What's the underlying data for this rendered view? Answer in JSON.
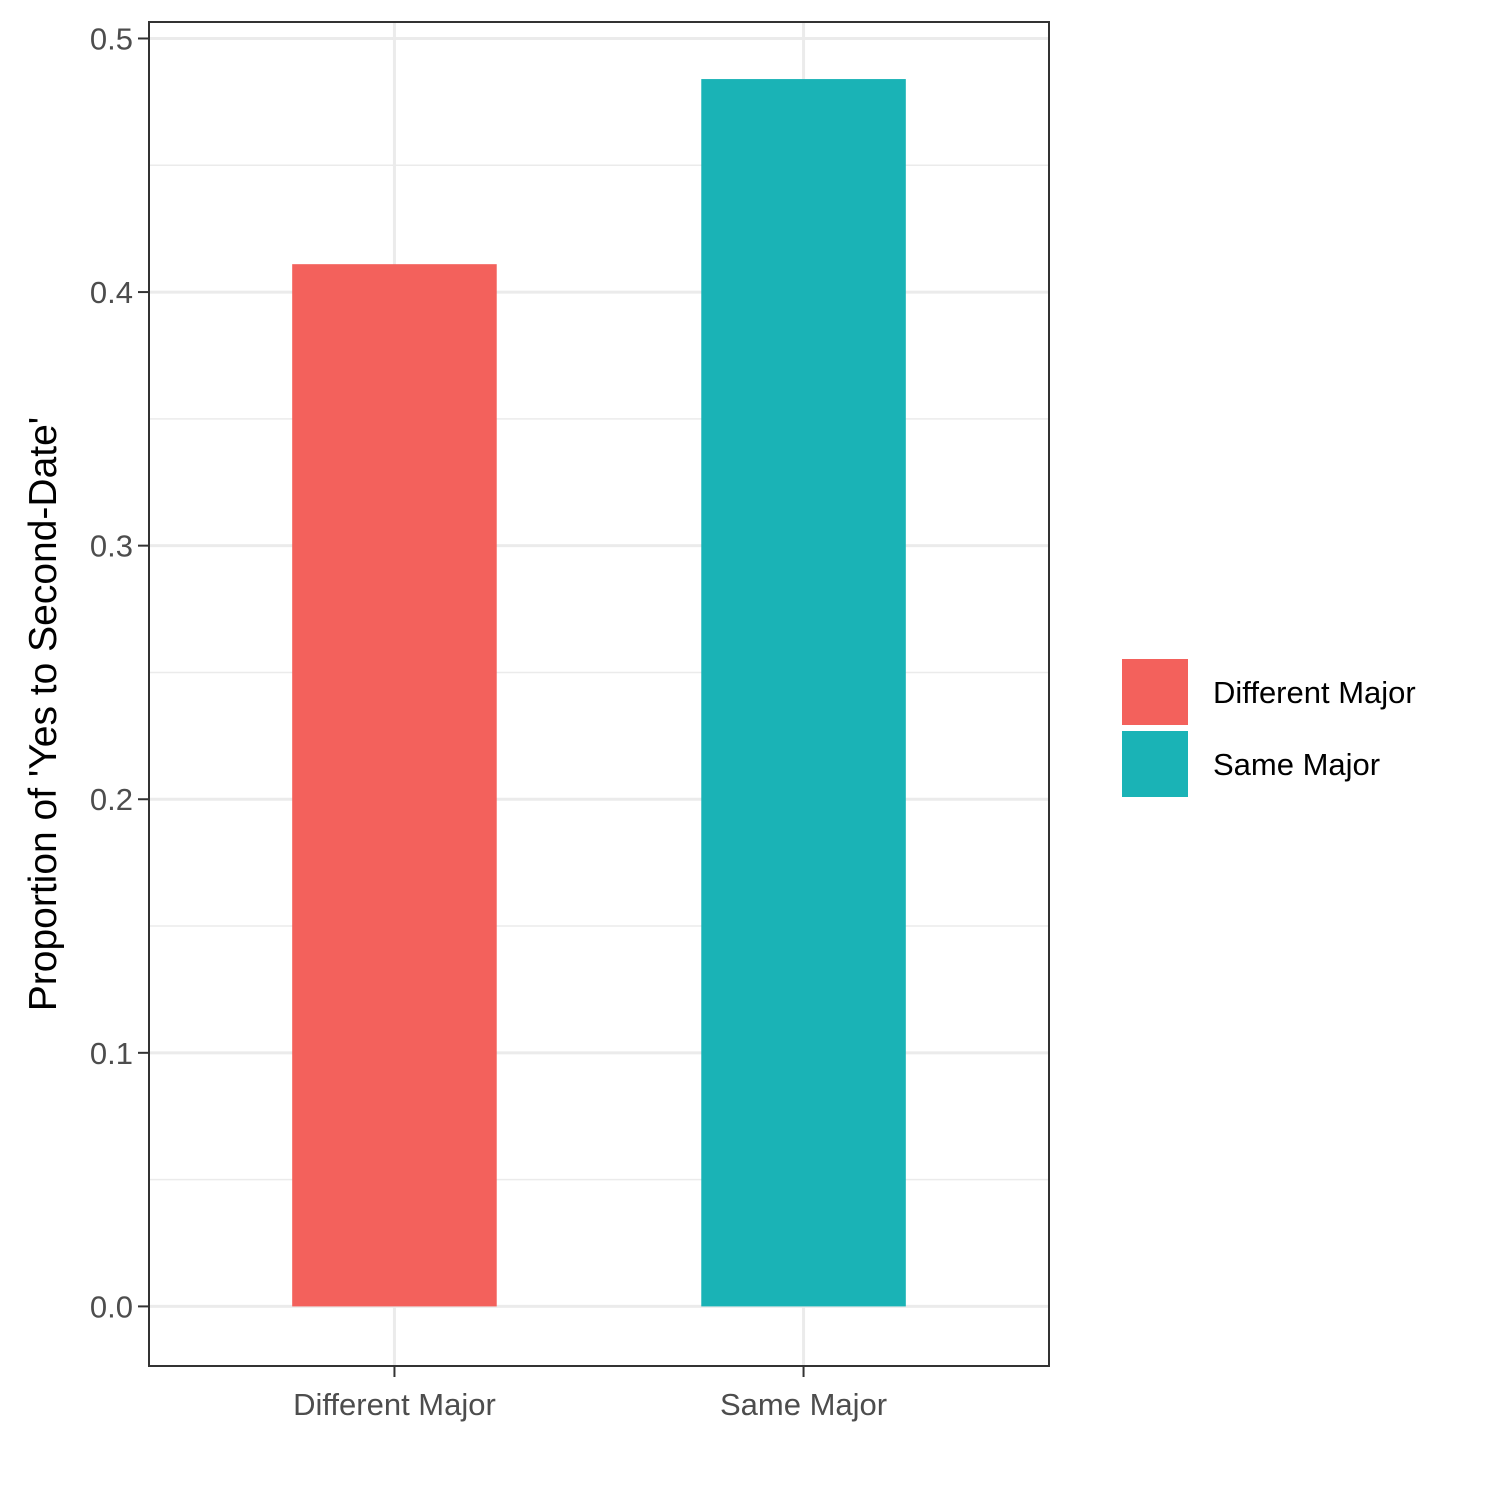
{
  "chart_data": {
    "type": "bar",
    "title": "",
    "xlabel": "",
    "ylabel": "Proportion of 'Yes to Second-Date'",
    "categories": [
      "Different Major",
      "Same Major"
    ],
    "values": [
      0.411,
      0.484
    ],
    "colors": [
      "#F3615C",
      "#1AB3B6"
    ],
    "ylim": [
      -0.0235,
      0.5065
    ],
    "yticks": [
      0.0,
      0.1,
      0.2,
      0.3,
      0.4,
      0.5
    ],
    "ytick_labels": [
      "0.0",
      "0.1",
      "0.2",
      "0.3",
      "0.4",
      "0.5"
    ],
    "grid": true,
    "legend": {
      "position": "right",
      "entries": [
        {
          "label": "Different Major",
          "color": "#F3615C"
        },
        {
          "label": "Same Major",
          "color": "#1AB3B6"
        }
      ]
    }
  }
}
